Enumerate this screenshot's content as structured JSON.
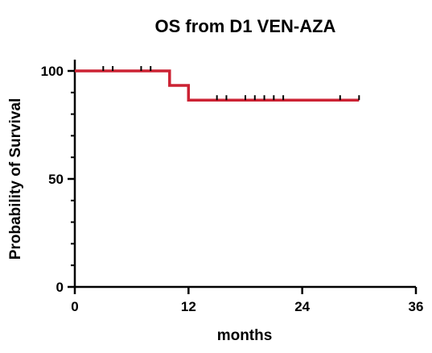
{
  "chart_data": {
    "type": "line",
    "subtype": "kaplan-meier",
    "title": "OS from D1 VEN-AZA",
    "xlabel": "months",
    "ylabel": "Probability of Survival",
    "xlim": [
      0,
      36
    ],
    "ylim": [
      0,
      100
    ],
    "x_ticks": [
      0,
      12,
      24,
      36
    ],
    "y_ticks": [
      0,
      50,
      100
    ],
    "y_minor_step": 10,
    "grid": false,
    "legend": "none",
    "line_color": "#cc2233",
    "series": [
      {
        "step_points": [
          [
            0,
            100
          ],
          [
            10,
            100
          ],
          [
            10,
            93.3
          ],
          [
            12,
            93.3
          ],
          [
            12,
            86.5
          ],
          [
            30,
            86.5
          ]
        ],
        "censor_times": [
          3,
          4,
          7,
          8,
          15,
          16,
          18,
          19,
          20,
          21,
          22,
          28,
          30
        ]
      }
    ]
  }
}
